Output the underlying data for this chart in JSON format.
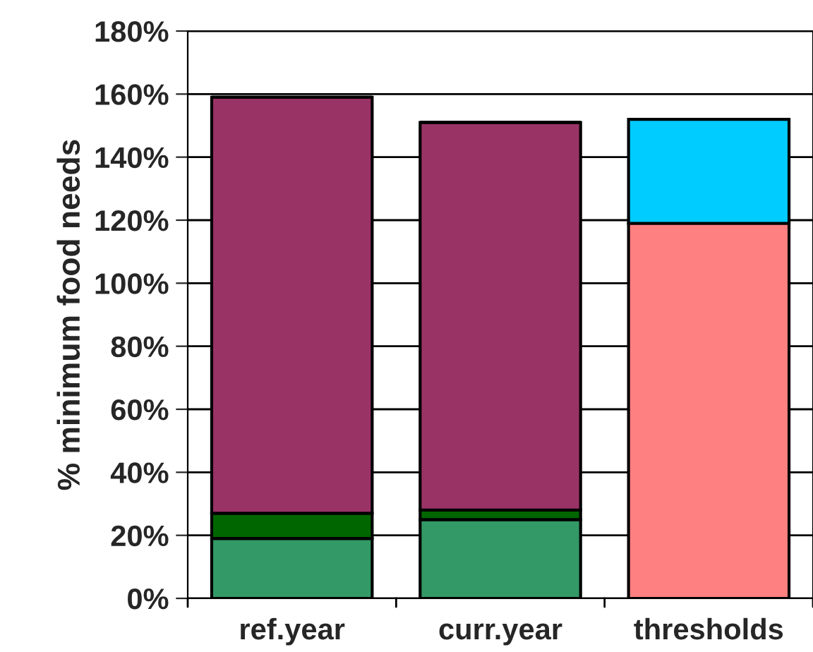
{
  "chart_data": {
    "type": "bar",
    "stacked": true,
    "ylabel": "% minimum food needs",
    "categories": [
      "ref.year",
      "curr.year",
      "thresholds"
    ],
    "series": [
      {
        "color": "#339966",
        "values": [
          19,
          25,
          null
        ]
      },
      {
        "color": "#006600",
        "values": [
          8,
          3,
          null
        ]
      },
      {
        "color": "#993366",
        "values": [
          132,
          123,
          null
        ]
      },
      {
        "color": "#ff8080",
        "values": [
          null,
          null,
          119
        ]
      },
      {
        "color": "#00ccff",
        "values": [
          null,
          null,
          33
        ]
      }
    ],
    "ylim": [
      0,
      180
    ],
    "yticks": [
      {
        "value": 0,
        "label": "0%"
      },
      {
        "value": 20,
        "label": "20%"
      },
      {
        "value": 40,
        "label": "40%"
      },
      {
        "value": 60,
        "label": "60%"
      },
      {
        "value": 80,
        "label": "80%"
      },
      {
        "value": 100,
        "label": "100%"
      },
      {
        "value": 120,
        "label": "120%"
      },
      {
        "value": 140,
        "label": "140%"
      },
      {
        "value": 160,
        "label": "160%"
      },
      {
        "value": 180,
        "label": "180%"
      }
    ],
    "grid": "y"
  }
}
